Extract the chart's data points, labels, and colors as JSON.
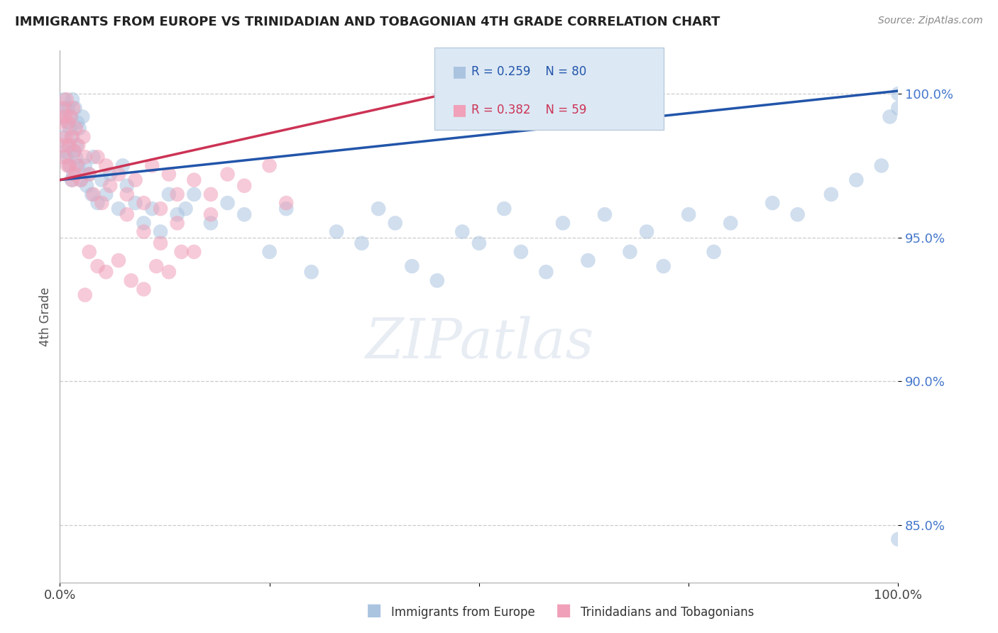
{
  "title": "IMMIGRANTS FROM EUROPE VS TRINIDADIAN AND TOBAGONIAN 4TH GRADE CORRELATION CHART",
  "source": "Source: ZipAtlas.com",
  "ylabel": "4th Grade",
  "xlim": [
    0.0,
    100.0
  ],
  "ylim": [
    83.0,
    101.5
  ],
  "yticks": [
    85.0,
    90.0,
    95.0,
    100.0
  ],
  "ytick_labels": [
    "85.0%",
    "90.0%",
    "95.0%",
    "100.0%"
  ],
  "blue_R": 0.259,
  "blue_N": 80,
  "pink_R": 0.382,
  "pink_N": 59,
  "blue_color": "#aac4e0",
  "pink_color": "#f0a0b8",
  "blue_line_color": "#2255aa",
  "pink_line_color": "#cc3355",
  "legend_box_color": "#dce8f4",
  "blue_scatter_x": [
    0.3,
    0.4,
    0.5,
    0.6,
    0.7,
    0.8,
    0.9,
    1.0,
    1.0,
    1.1,
    1.2,
    1.3,
    1.4,
    1.5,
    1.5,
    1.6,
    1.7,
    1.8,
    1.9,
    2.0,
    2.1,
    2.2,
    2.3,
    2.5,
    2.7,
    3.0,
    3.2,
    3.5,
    3.8,
    4.0,
    4.5,
    5.0,
    5.5,
    6.0,
    7.0,
    7.5,
    8.0,
    9.0,
    10.0,
    11.0,
    12.0,
    13.0,
    14.0,
    15.0,
    16.0,
    18.0,
    20.0,
    22.0,
    25.0,
    27.0,
    30.0,
    33.0,
    36.0,
    38.0,
    40.0,
    42.0,
    45.0,
    48.0,
    50.0,
    53.0,
    55.0,
    58.0,
    60.0,
    63.0,
    65.0,
    68.0,
    70.0,
    72.0,
    75.0,
    78.0,
    80.0,
    85.0,
    88.0,
    92.0,
    95.0,
    98.0,
    99.0,
    100.0,
    100.0,
    100.0
  ],
  "blue_scatter_y": [
    99.2,
    98.5,
    99.8,
    98.0,
    99.5,
    97.8,
    99.0,
    98.2,
    99.5,
    97.5,
    98.8,
    99.2,
    97.0,
    98.5,
    99.8,
    97.2,
    98.0,
    99.5,
    97.8,
    98.2,
    99.0,
    97.5,
    98.8,
    97.0,
    99.2,
    97.5,
    96.8,
    97.2,
    96.5,
    97.8,
    96.2,
    97.0,
    96.5,
    97.2,
    96.0,
    97.5,
    96.8,
    96.2,
    95.5,
    96.0,
    95.2,
    96.5,
    95.8,
    96.0,
    96.5,
    95.5,
    96.2,
    95.8,
    94.5,
    96.0,
    93.8,
    95.2,
    94.8,
    96.0,
    95.5,
    94.0,
    93.5,
    95.2,
    94.8,
    96.0,
    94.5,
    93.8,
    95.5,
    94.2,
    95.8,
    94.5,
    95.2,
    94.0,
    95.8,
    94.5,
    95.5,
    96.2,
    95.8,
    96.5,
    97.0,
    97.5,
    99.2,
    100.0,
    99.5,
    84.5
  ],
  "pink_scatter_x": [
    0.2,
    0.3,
    0.4,
    0.5,
    0.6,
    0.7,
    0.8,
    0.9,
    1.0,
    1.1,
    1.2,
    1.3,
    1.4,
    1.5,
    1.6,
    1.7,
    1.8,
    1.9,
    2.0,
    2.2,
    2.5,
    2.8,
    3.0,
    3.5,
    4.0,
    4.5,
    5.0,
    5.5,
    6.0,
    7.0,
    8.0,
    9.0,
    10.0,
    11.0,
    12.0,
    13.0,
    14.0,
    16.0,
    18.0,
    20.0,
    22.0,
    25.0,
    27.0,
    8.0,
    10.0,
    12.0,
    14.0,
    16.0,
    18.0,
    3.5,
    4.5,
    5.5,
    7.0,
    8.5,
    10.0,
    11.5,
    13.0,
    14.5,
    3.0
  ],
  "pink_scatter_y": [
    99.0,
    98.2,
    99.5,
    97.8,
    99.2,
    98.5,
    99.8,
    97.5,
    99.0,
    98.2,
    97.5,
    99.2,
    98.5,
    97.0,
    99.5,
    98.0,
    97.2,
    98.8,
    97.5,
    98.2,
    97.0,
    98.5,
    97.8,
    97.2,
    96.5,
    97.8,
    96.2,
    97.5,
    96.8,
    97.2,
    96.5,
    97.0,
    96.2,
    97.5,
    96.0,
    97.2,
    96.5,
    97.0,
    96.5,
    97.2,
    96.8,
    97.5,
    96.2,
    95.8,
    95.2,
    94.8,
    95.5,
    94.5,
    95.8,
    94.5,
    94.0,
    93.8,
    94.2,
    93.5,
    93.2,
    94.0,
    93.8,
    94.5,
    93.0
  ]
}
